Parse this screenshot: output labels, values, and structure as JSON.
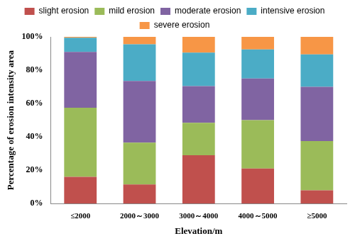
{
  "chart_data": {
    "type": "bar",
    "stacked": true,
    "x_label": "Elevation/m",
    "y_label": "Percentage of erosion intensity area",
    "categories": [
      "≤2000",
      "2000～3000",
      "3000～4000",
      "4000～5000",
      "≥5000"
    ],
    "series": [
      {
        "name": "slight erosion",
        "color": "#c0504d",
        "values": [
          16,
          11.5,
          29,
          21,
          8
        ]
      },
      {
        "name": "mild erosion",
        "color": "#9bbb59",
        "values": [
          41.5,
          25,
          19.5,
          29,
          29.5
        ]
      },
      {
        "name": "moderate erosion",
        "color": "#8064a2",
        "values": [
          33.5,
          37,
          22,
          25,
          32.5
        ]
      },
      {
        "name": "intensive erosion",
        "color": "#4bacc6",
        "values": [
          8.5,
          22,
          20,
          17.5,
          19.5
        ]
      },
      {
        "name": "severe erosion",
        "color": "#f79646",
        "values": [
          0.5,
          4.5,
          9.5,
          7.5,
          10.5
        ]
      }
    ],
    "ylim": [
      0,
      100
    ],
    "yticks": [
      {
        "value": 0,
        "label": "0%"
      },
      {
        "value": 20,
        "label": "20%"
      },
      {
        "value": 40,
        "label": "40%"
      },
      {
        "value": 60,
        "label": "60%"
      },
      {
        "value": 80,
        "label": "80%"
      },
      {
        "value": 100,
        "label": "100%"
      }
    ],
    "grid": false,
    "legend": "top"
  }
}
